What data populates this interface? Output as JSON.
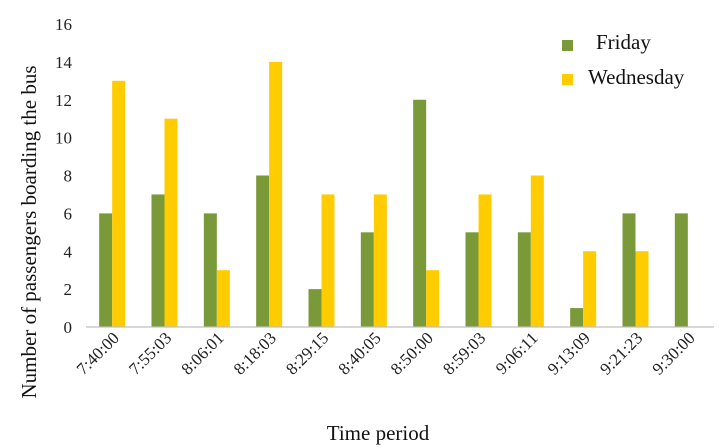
{
  "chart_data": {
    "type": "bar",
    "title": "",
    "xlabel": "Time period",
    "ylabel": "Number of passengers boarding the bus",
    "ylim": [
      0,
      16
    ],
    "yticks": [
      0,
      2,
      4,
      6,
      8,
      10,
      12,
      14,
      16
    ],
    "grid": false,
    "legend_position": "top-right",
    "categories": [
      "7:40:00",
      "7:55:03",
      "8:06:01",
      "8:18:03",
      "8:29:15",
      "8:40:05",
      "8:50:00",
      "8:59:03",
      "9:06:11",
      "9:13:09",
      "9:21:23",
      "9:30:00"
    ],
    "series": [
      {
        "name": "Friday",
        "color": "#7a9a3a",
        "values": [
          6,
          7,
          6,
          8,
          2,
          5,
          12,
          5,
          5,
          1,
          6,
          6
        ]
      },
      {
        "name": "Wednesday",
        "color": "#ffcc00",
        "values": [
          13,
          11,
          3,
          14,
          7,
          7,
          3,
          7,
          8,
          4,
          4,
          0
        ]
      }
    ]
  }
}
